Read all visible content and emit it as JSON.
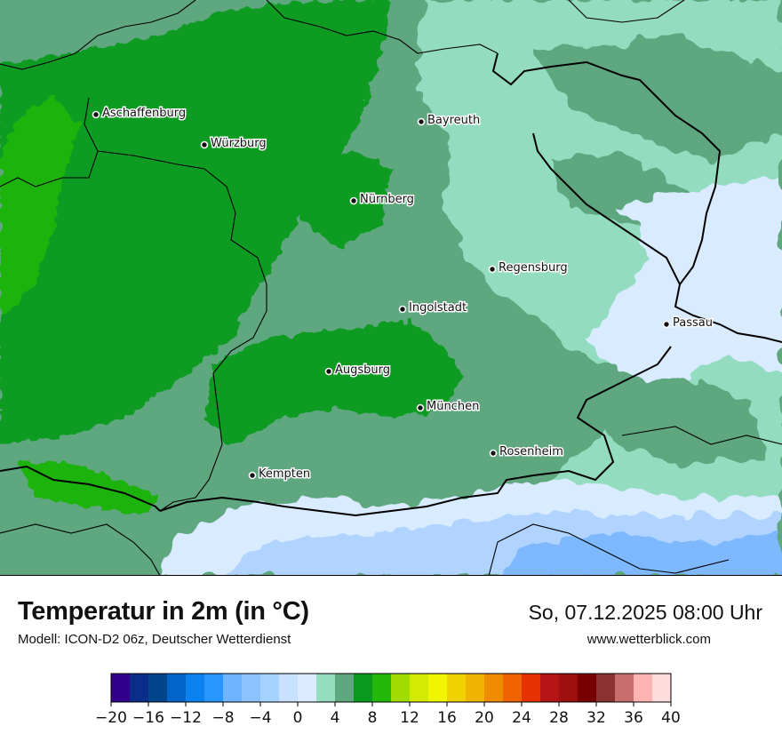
{
  "map": {
    "colors": {
      "band_green_bright": "#1fb30f",
      "band_green": "#099b20",
      "band_sage": "#5fa87f",
      "band_mint": "#94dcc0",
      "band_pale_blue": "#d8ebff",
      "band_light_blue": "#b0d4ff",
      "band_blue": "#7eb8ff",
      "band_yellow": "#f0f000",
      "border_line": "#000000"
    },
    "cities": [
      {
        "name": "Aschaffenburg"
      },
      {
        "name": "Würzburg"
      },
      {
        "name": "Bayreuth"
      },
      {
        "name": "Nürnberg"
      },
      {
        "name": "Regensburg"
      },
      {
        "name": "Ingolstadt"
      },
      {
        "name": "Passau"
      },
      {
        "name": "Augsburg"
      },
      {
        "name": "München"
      },
      {
        "name": "Rosenheim"
      },
      {
        "name": "Kempten"
      }
    ]
  },
  "header": {
    "title": "Temperatur in 2m (in °C)",
    "subtitle": "Modell: ICON-D2 06z, Deutscher Wetterdienst",
    "datetime": "So, 07.12.2025 08:00 Uhr",
    "website": "www.wetterblick.com"
  },
  "legend": {
    "min": -20,
    "max": 40,
    "step": 2,
    "tick_labels": [
      "−20",
      "−16",
      "−12",
      "−8",
      "−4",
      "0",
      "4",
      "8",
      "12",
      "16",
      "20",
      "24",
      "28",
      "32",
      "36",
      "40"
    ],
    "colors": [
      "#32008c",
      "#0a2d8c",
      "#00458c",
      "#0064c8",
      "#0a82f0",
      "#2896ff",
      "#6eb4ff",
      "#8cc3ff",
      "#a5d2ff",
      "#c8e1ff",
      "#dcebff",
      "#96dcbe",
      "#5fa87f",
      "#0a9b1e",
      "#24b90a",
      "#a0dc00",
      "#d2eb00",
      "#f0f500",
      "#f0d200",
      "#f0b400",
      "#f08c00",
      "#f06400",
      "#e63200",
      "#b41414",
      "#a00f0f",
      "#780000",
      "#8c3232",
      "#c86e6e",
      "#ffb4b4",
      "#ffdcdc"
    ]
  }
}
